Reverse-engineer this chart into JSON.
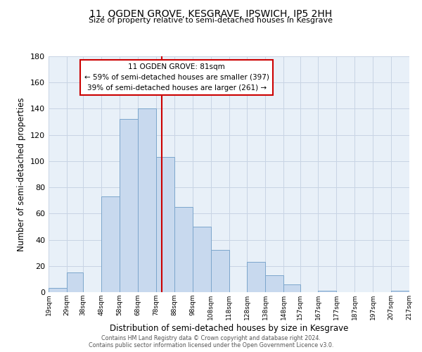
{
  "title": "11, OGDEN GROVE, KESGRAVE, IPSWICH, IP5 2HH",
  "subtitle": "Size of property relative to semi-detached houses in Kesgrave",
  "xlabel": "Distribution of semi-detached houses by size in Kesgrave",
  "ylabel": "Number of semi-detached properties",
  "bar_left_edges": [
    19,
    29,
    38,
    48,
    58,
    68,
    78,
    88,
    98,
    108,
    118,
    128,
    138,
    148,
    157,
    167,
    177,
    187,
    197,
    207
  ],
  "bar_widths": [
    10,
    9,
    10,
    10,
    10,
    10,
    10,
    10,
    10,
    10,
    10,
    10,
    10,
    9,
    10,
    10,
    10,
    10,
    10,
    10
  ],
  "bar_heights": [
    3,
    15,
    0,
    73,
    132,
    140,
    103,
    65,
    50,
    32,
    0,
    23,
    13,
    6,
    0,
    1,
    0,
    0,
    0,
    1
  ],
  "bar_color": "#c8d9ee",
  "bar_edgecolor": "#7ca6cc",
  "tick_labels": [
    "19sqm",
    "29sqm",
    "38sqm",
    "48sqm",
    "58sqm",
    "68sqm",
    "78sqm",
    "88sqm",
    "98sqm",
    "108sqm",
    "118sqm",
    "128sqm",
    "138sqm",
    "148sqm",
    "157sqm",
    "167sqm",
    "177sqm",
    "187sqm",
    "197sqm",
    "207sqm",
    "217sqm"
  ],
  "ylim": [
    0,
    180
  ],
  "yticks": [
    0,
    20,
    40,
    60,
    80,
    100,
    120,
    140,
    160,
    180
  ],
  "vline_x": 81,
  "vline_color": "#cc0000",
  "annotation_title": "11 OGDEN GROVE: 81sqm",
  "annotation_line1": "← 59% of semi-detached houses are smaller (397)",
  "annotation_line2": "39% of semi-detached houses are larger (261) →",
  "annotation_box_facecolor": "#ffffff",
  "annotation_box_edgecolor": "#cc0000",
  "footer_line1": "Contains HM Land Registry data © Crown copyright and database right 2024.",
  "footer_line2": "Contains public sector information licensed under the Open Government Licence v3.0.",
  "plot_bg_color": "#e8f0f8",
  "fig_bg_color": "#ffffff",
  "grid_color": "#c8d4e4"
}
